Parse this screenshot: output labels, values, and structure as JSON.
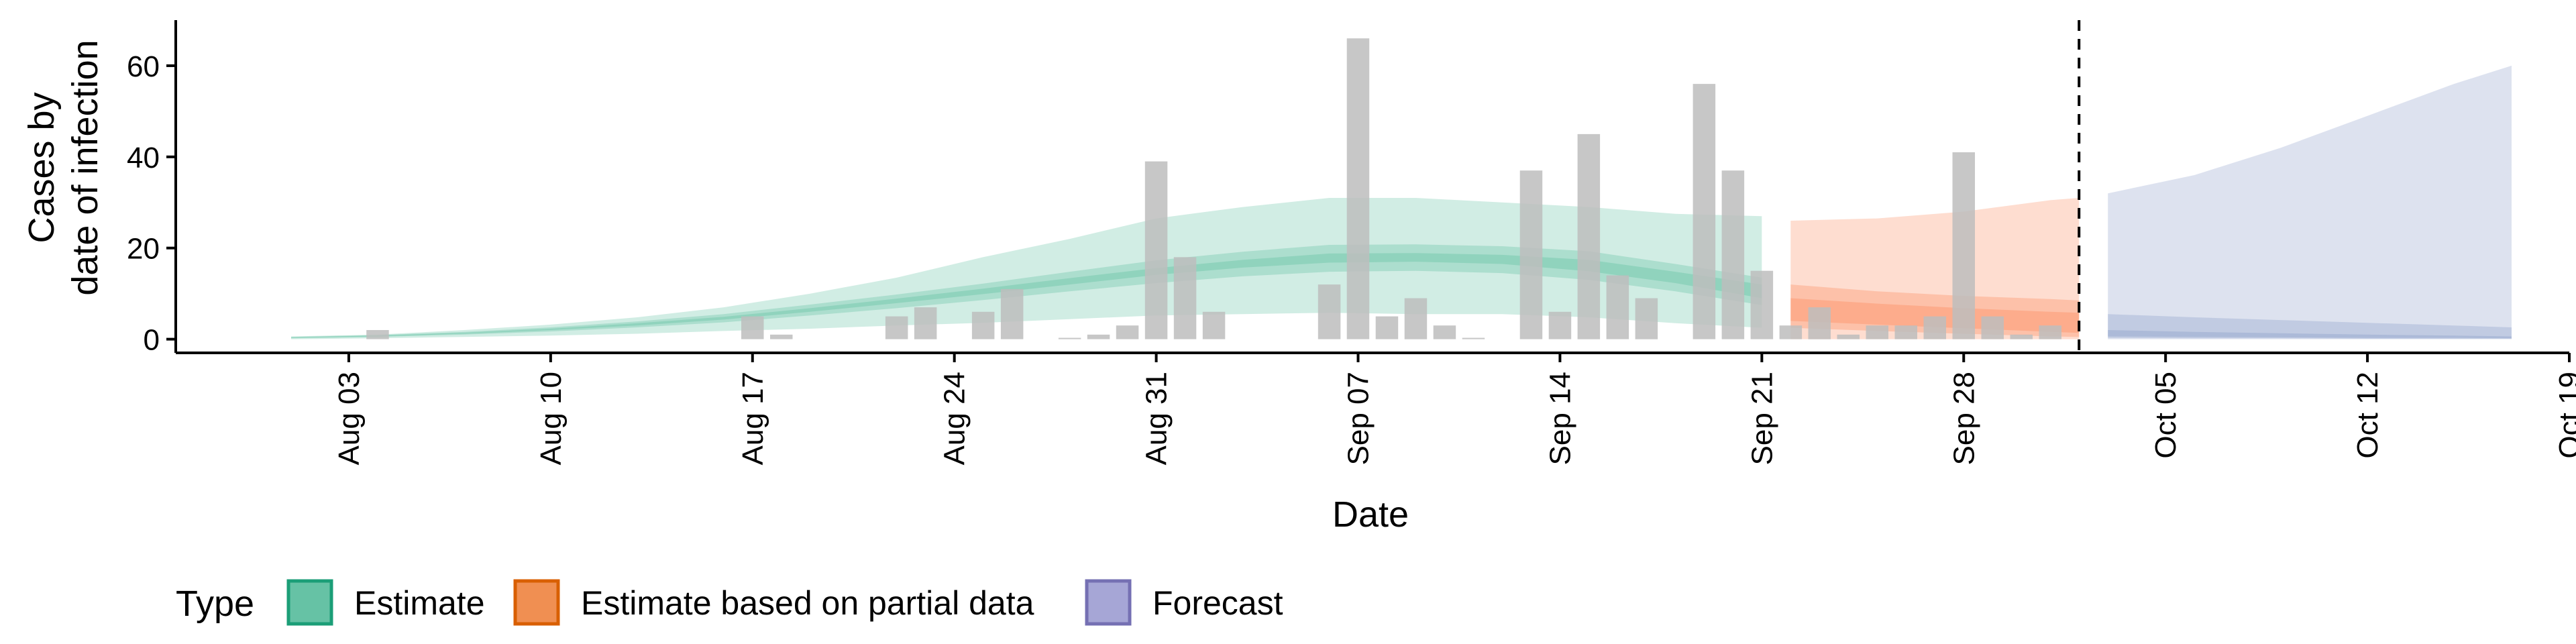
{
  "chart_data": {
    "type": "bar",
    "xlabel": "Date",
    "ylabel_lines": [
      "Cases by",
      "date of infection"
    ],
    "x_range": [
      "2020-07-28",
      "2020-10-19"
    ],
    "ylim": [
      -3,
      70
    ],
    "y_ticks": [
      0,
      20,
      40,
      60
    ],
    "x_ticks": [
      {
        "date": "2020-08-03",
        "label": "Aug 03"
      },
      {
        "date": "2020-08-10",
        "label": "Aug 10"
      },
      {
        "date": "2020-08-17",
        "label": "Aug 17"
      },
      {
        "date": "2020-08-24",
        "label": "Aug 24"
      },
      {
        "date": "2020-08-31",
        "label": "Aug 31"
      },
      {
        "date": "2020-09-07",
        "label": "Sep 07"
      },
      {
        "date": "2020-09-14",
        "label": "Sep 14"
      },
      {
        "date": "2020-09-21",
        "label": "Sep 21"
      },
      {
        "date": "2020-09-28",
        "label": "Sep 28"
      },
      {
        "date": "2020-10-05",
        "label": "Oct 05"
      },
      {
        "date": "2020-10-12",
        "label": "Oct 12"
      },
      {
        "date": "2020-10-19",
        "label": "Oct 19"
      }
    ],
    "forecast_divider_date": "2020-10-02",
    "grid": false,
    "legend_position": "bottom-left",
    "colors": {
      "bars": "#bdbdbd",
      "estimate": "#1b9e77",
      "estimate_fill": "#66c2a5",
      "partial": "#d95f02",
      "partial_fill": "#fc8d62",
      "forecast": "#7570b3",
      "forecast_fill": "#8da0cb"
    },
    "reported_cases": [
      {
        "date": "2020-08-04",
        "value": 2
      },
      {
        "date": "2020-08-17",
        "value": 5
      },
      {
        "date": "2020-08-18",
        "value": 1
      },
      {
        "date": "2020-08-22",
        "value": 5
      },
      {
        "date": "2020-08-23",
        "value": 7
      },
      {
        "date": "2020-08-25",
        "value": 6
      },
      {
        "date": "2020-08-26",
        "value": 11
      },
      {
        "date": "2020-08-28",
        "value": 0
      },
      {
        "date": "2020-08-29",
        "value": 1
      },
      {
        "date": "2020-08-30",
        "value": 3
      },
      {
        "date": "2020-08-31",
        "value": 39
      },
      {
        "date": "2020-09-01",
        "value": 18
      },
      {
        "date": "2020-09-02",
        "value": 6
      },
      {
        "date": "2020-09-06",
        "value": 12
      },
      {
        "date": "2020-09-07",
        "value": 66
      },
      {
        "date": "2020-09-08",
        "value": 5
      },
      {
        "date": "2020-09-09",
        "value": 9
      },
      {
        "date": "2020-09-10",
        "value": 3
      },
      {
        "date": "2020-09-11",
        "value": 0
      },
      {
        "date": "2020-09-13",
        "value": 37
      },
      {
        "date": "2020-09-14",
        "value": 6
      },
      {
        "date": "2020-09-15",
        "value": 45
      },
      {
        "date": "2020-09-16",
        "value": 14
      },
      {
        "date": "2020-09-17",
        "value": 9
      },
      {
        "date": "2020-09-19",
        "value": 56
      },
      {
        "date": "2020-09-20",
        "value": 37
      },
      {
        "date": "2020-09-21",
        "value": 15
      },
      {
        "date": "2020-09-22",
        "value": 3
      },
      {
        "date": "2020-09-23",
        "value": 7
      },
      {
        "date": "2020-09-24",
        "value": 1
      },
      {
        "date": "2020-09-25",
        "value": 3
      },
      {
        "date": "2020-09-26",
        "value": 3
      },
      {
        "date": "2020-09-27",
        "value": 5
      },
      {
        "date": "2020-09-28",
        "value": 41
      },
      {
        "date": "2020-09-29",
        "value": 5
      },
      {
        "date": "2020-09-30",
        "value": 1
      },
      {
        "date": "2020-10-01",
        "value": 3
      }
    ],
    "series": [
      {
        "name": "Estimate",
        "dates": [
          "2020-08-01",
          "2020-08-04",
          "2020-08-07",
          "2020-08-10",
          "2020-08-13",
          "2020-08-16",
          "2020-08-19",
          "2020-08-22",
          "2020-08-25",
          "2020-08-28",
          "2020-08-31",
          "2020-09-03",
          "2020-09-06",
          "2020-09-09",
          "2020-09-12",
          "2020-09-15",
          "2020-09-18",
          "2020-09-21"
        ],
        "outer_low": [
          0,
          0.2,
          0.5,
          0.8,
          1.2,
          1.8,
          2.3,
          3.0,
          3.6,
          4.4,
          5.2,
          5.5,
          5.8,
          5.5,
          5.5,
          4.8,
          3.5,
          2.5
        ],
        "outer_high": [
          0.6,
          1.0,
          2.0,
          3.2,
          4.8,
          7.0,
          10.0,
          13.5,
          18.0,
          22.0,
          26.5,
          29.0,
          31.0,
          31.0,
          30.0,
          29.0,
          27.5,
          27.0
        ],
        "mid_low": [
          0.2,
          0.5,
          1.0,
          1.7,
          2.6,
          3.7,
          5.2,
          6.8,
          8.6,
          10.5,
          12.3,
          13.8,
          14.8,
          15.0,
          14.5,
          13.0,
          10.5,
          7.5
        ],
        "mid_high": [
          0.5,
          0.9,
          1.6,
          2.6,
          3.9,
          5.5,
          7.6,
          9.8,
          12.2,
          14.8,
          17.3,
          19.2,
          20.7,
          20.8,
          20.4,
          19.3,
          16.5,
          13.5
        ],
        "inner_low": [
          0.3,
          0.6,
          1.2,
          2.0,
          3.0,
          4.3,
          6.0,
          7.9,
          9.9,
          12.0,
          14.1,
          15.7,
          16.8,
          17.0,
          16.5,
          14.9,
          12.3,
          9.0
        ],
        "inner_high": [
          0.4,
          0.8,
          1.4,
          2.3,
          3.5,
          4.9,
          6.8,
          8.9,
          11.1,
          13.4,
          15.6,
          17.4,
          18.8,
          18.9,
          18.5,
          17.4,
          14.8,
          12.0
        ]
      },
      {
        "name": "Estimate based on partial data",
        "dates": [
          "2020-09-22",
          "2020-09-25",
          "2020-09-28",
          "2020-10-01",
          "2020-10-02"
        ],
        "outer_low": [
          0,
          0,
          0,
          0,
          0
        ],
        "outer_high": [
          26,
          26.5,
          28,
          30.5,
          31
        ],
        "mid_low": [
          2.5,
          1.8,
          1.2,
          0.6,
          0.5
        ],
        "mid_high": [
          12,
          10.5,
          9.5,
          8.8,
          8.5
        ],
        "inner_low": [
          4,
          3.2,
          2.4,
          1.6,
          1.4
        ],
        "inner_high": [
          9,
          7.8,
          6.8,
          6.0,
          5.8
        ]
      },
      {
        "name": "Forecast",
        "dates": [
          "2020-10-03",
          "2020-10-06",
          "2020-10-09",
          "2020-10-12",
          "2020-10-15",
          "2020-10-17"
        ],
        "outer_low": [
          0,
          0,
          0,
          0,
          0,
          0
        ],
        "outer_high": [
          32,
          36,
          42,
          49,
          56,
          60
        ],
        "mid_low": [
          0.3,
          0.2,
          0.2,
          0.1,
          0.1,
          0.1
        ],
        "mid_high": [
          5.5,
          4.8,
          4.2,
          3.6,
          3.0,
          2.6
        ],
        "inner_low": [
          0.6,
          0.5,
          0.4,
          0.3,
          0.3,
          0.2
        ],
        "inner_high": [
          2.0,
          1.6,
          1.3,
          1.0,
          0.8,
          0.6
        ]
      }
    ],
    "legend": {
      "title": "Type",
      "items": [
        {
          "label": "Estimate",
          "fill": "#66c2a5",
          "stroke": "#1b9e77"
        },
        {
          "label": "Estimate based on partial data",
          "fill": "#f08f52",
          "stroke": "#d95f02"
        },
        {
          "label": "Forecast",
          "fill": "#a6a6d6",
          "stroke": "#7570b3"
        }
      ]
    }
  }
}
